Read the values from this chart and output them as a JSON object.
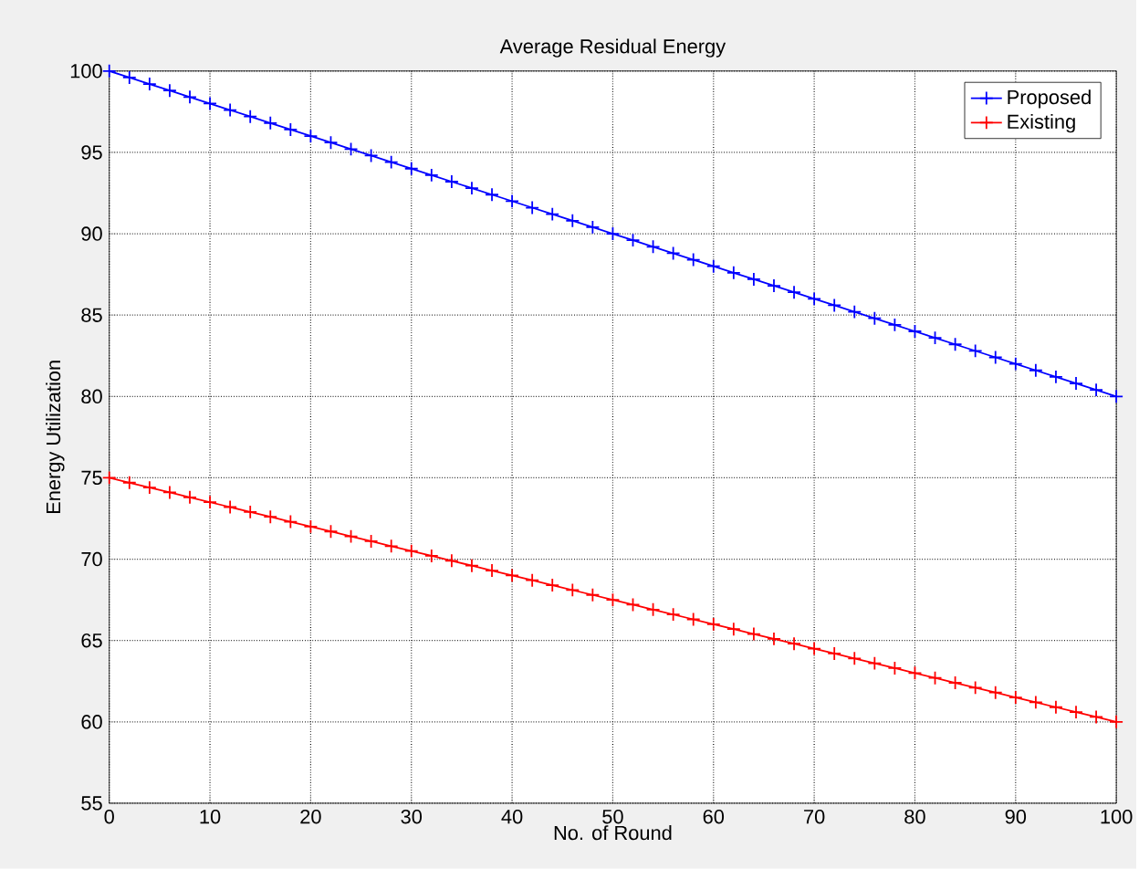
{
  "chart_data": {
    "type": "line",
    "title": "Average Residual Energy",
    "xlabel": "No. of Round",
    "ylabel": "Energy Utilization",
    "x": [
      0,
      2,
      4,
      6,
      8,
      10,
      12,
      14,
      16,
      18,
      20,
      22,
      24,
      26,
      28,
      30,
      32,
      34,
      36,
      38,
      40,
      42,
      44,
      46,
      48,
      50,
      52,
      54,
      56,
      58,
      60,
      62,
      64,
      66,
      68,
      70,
      72,
      74,
      76,
      78,
      80,
      82,
      84,
      86,
      88,
      90,
      92,
      94,
      96,
      98,
      100
    ],
    "series": [
      {
        "name": "Proposed",
        "color": "#0000ff",
        "values": [
          100,
          99.6,
          99.2,
          98.8,
          98.4,
          98,
          97.6,
          97.2,
          96.8,
          96.4,
          96,
          95.6,
          95.2,
          94.8,
          94.4,
          94,
          93.6,
          93.2,
          92.8,
          92.4,
          92,
          91.6,
          91.2,
          90.8,
          90.4,
          90,
          89.6,
          89.2,
          88.8,
          88.4,
          88,
          87.6,
          87.2,
          86.8,
          86.4,
          86,
          85.6,
          85.2,
          84.8,
          84.4,
          84,
          83.6,
          83.2,
          82.8,
          82.4,
          82,
          81.6,
          81.2,
          80.8,
          80.4,
          80
        ]
      },
      {
        "name": "Existing",
        "color": "#ff0000",
        "values": [
          75,
          74.7,
          74.4,
          74.1,
          73.8,
          73.5,
          73.2,
          72.9,
          72.6,
          72.3,
          72,
          71.7,
          71.4,
          71.1,
          70.8,
          70.5,
          70.2,
          69.9,
          69.6,
          69.3,
          69,
          68.7,
          68.4,
          68.1,
          67.8,
          67.5,
          67.2,
          66.9,
          66.6,
          66.3,
          66,
          65.7,
          65.4,
          65.1,
          64.8,
          64.5,
          64.2,
          63.9,
          63.6,
          63.3,
          63,
          62.7,
          62.4,
          62.1,
          61.8,
          61.5,
          61.2,
          60.9,
          60.6,
          60.3,
          60
        ]
      }
    ],
    "xlim": [
      0,
      100
    ],
    "xticks": [
      0,
      10,
      20,
      30,
      40,
      50,
      60,
      70,
      80,
      90,
      100
    ],
    "ylim": [
      55,
      100
    ],
    "yticks": [
      55,
      60,
      65,
      70,
      75,
      80,
      85,
      90,
      95,
      100
    ],
    "grid": true,
    "legend": "top right",
    "marker": "cross",
    "line_style": "solid"
  }
}
